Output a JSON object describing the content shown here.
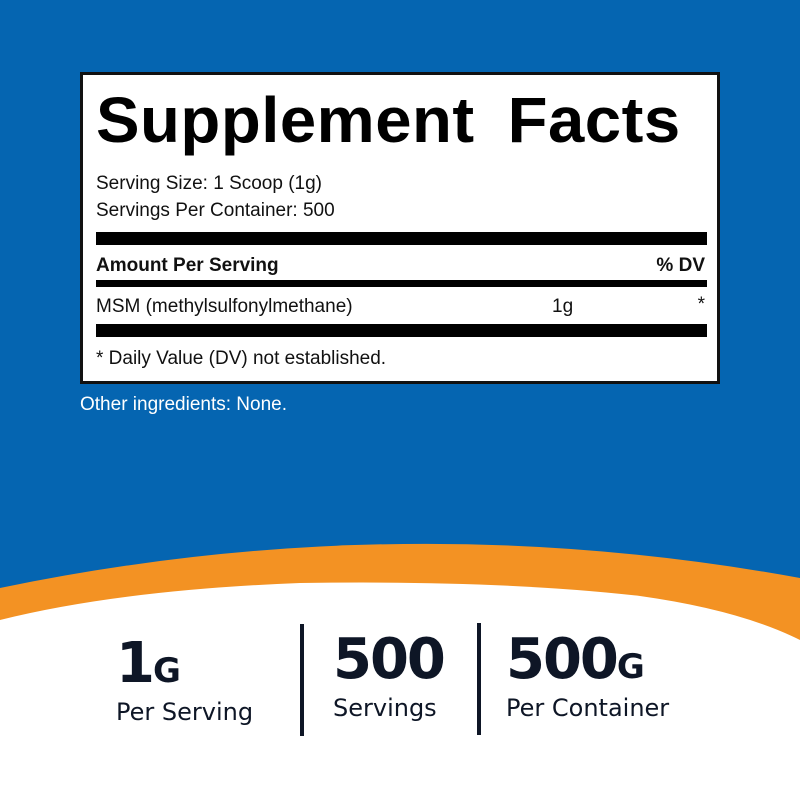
{
  "colors": {
    "background_blue": "#0565b1",
    "accent_orange": "#f39223",
    "text_dark": "#0e1626"
  },
  "label": {
    "title": "Supplement Facts",
    "serving_size": "Serving Size: 1 Scoop (1g)",
    "servings_per_container": "Servings Per Container: 500",
    "amount_header": "Amount Per Serving",
    "dv_header": "% DV",
    "ingredients": [
      {
        "name": "MSM (methylsulfonylmethane)",
        "amount": "1g",
        "dv": "*"
      }
    ],
    "footnote": "* Daily Value (DV) not established."
  },
  "other_ingredients": "Other ingredients: None.",
  "stats": [
    {
      "value": "1",
      "unit": "G",
      "label": "Per Serving"
    },
    {
      "value": "500",
      "unit": "",
      "label": "Servings"
    },
    {
      "value": "500",
      "unit": "G",
      "label": "Per Container"
    }
  ]
}
